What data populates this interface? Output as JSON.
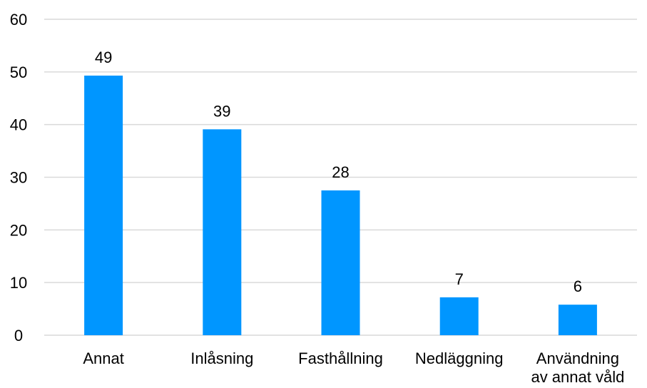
{
  "chart_data": {
    "type": "bar",
    "title": "",
    "xlabel": "",
    "ylabel": "",
    "categories": [
      [
        "Annat"
      ],
      [
        "Inlåsning"
      ],
      [
        "Fasthållning"
      ],
      [
        "Nedläggning"
      ],
      [
        "Användning",
        "av annat våld"
      ]
    ],
    "values": [
      49,
      39,
      28,
      7,
      6
    ],
    "bar_heights": [
      49.3,
      39.1,
      27.5,
      7.2,
      5.8
    ],
    "ylim": [
      0,
      60
    ],
    "yticks": [
      0,
      10,
      20,
      30,
      40,
      50,
      60
    ],
    "grid": true,
    "legend": "none",
    "colors": {
      "bar": "#0096FF",
      "grid": "#d9d9d9",
      "text": "#000000"
    }
  }
}
